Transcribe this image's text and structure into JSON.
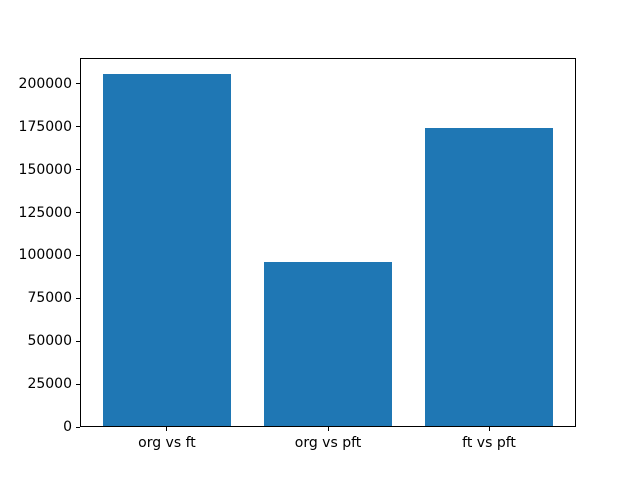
{
  "figure": {
    "background": "#ffffff",
    "spine_color": "#000000"
  },
  "chart_data": {
    "type": "bar",
    "title": "",
    "xlabel": "",
    "ylabel": "",
    "categories": [
      "org vs ft",
      "org vs pft",
      "ft vs pft"
    ],
    "values": [
      205000,
      95500,
      173500
    ],
    "bar_color": "#1f77b4",
    "bar_width_fraction": 0.8,
    "ylim": [
      0,
      215250
    ],
    "yticks": [
      0,
      25000,
      50000,
      75000,
      100000,
      125000,
      150000,
      175000,
      200000
    ],
    "ytick_labels": [
      "0",
      "25000",
      "50000",
      "75000",
      "100000",
      "125000",
      "150000",
      "175000",
      "200000"
    ],
    "grid": false,
    "legend": null
  }
}
